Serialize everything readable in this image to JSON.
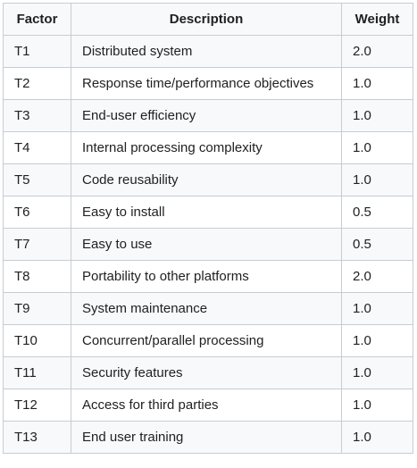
{
  "table": {
    "headers": {
      "factor": "Factor",
      "description": "Description",
      "weight": "Weight"
    },
    "rows": [
      {
        "factor": "T1",
        "description": "Distributed system",
        "weight": "2.0"
      },
      {
        "factor": "T2",
        "description": "Response time/performance objectives",
        "weight": "1.0"
      },
      {
        "factor": "T3",
        "description": "End-user efficiency",
        "weight": "1.0"
      },
      {
        "factor": "T4",
        "description": "Internal processing complexity",
        "weight": "1.0"
      },
      {
        "factor": "T5",
        "description": "Code reusability",
        "weight": "1.0"
      },
      {
        "factor": "T6",
        "description": "Easy to install",
        "weight": "0.5"
      },
      {
        "factor": "T7",
        "description": "Easy to use",
        "weight": "0.5"
      },
      {
        "factor": "T8",
        "description": "Portability to other platforms",
        "weight": "2.0"
      },
      {
        "factor": "T9",
        "description": "System maintenance",
        "weight": "1.0"
      },
      {
        "factor": "T10",
        "description": "Concurrent/parallel processing",
        "weight": "1.0"
      },
      {
        "factor": "T11",
        "description": "Security features",
        "weight": "1.0"
      },
      {
        "factor": "T12",
        "description": "Access for third parties",
        "weight": "1.0"
      },
      {
        "factor": "T13",
        "description": "End user training",
        "weight": "1.0"
      }
    ]
  }
}
